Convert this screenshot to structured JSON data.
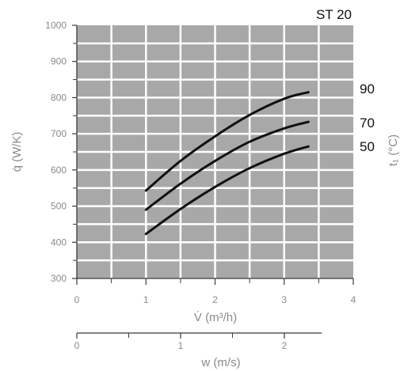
{
  "chart_data": {
    "type": "line",
    "title": "ST 20",
    "xlabel": "V̇ (m³/h)",
    "ylabel": "q̇ (W/K)",
    "right_label": "t₁ (°C)",
    "xlim": [
      0,
      4
    ],
    "ylim": [
      300,
      1000
    ],
    "x_ticks": [
      "0",
      "1",
      "2",
      "3",
      "4"
    ],
    "y_ticks": [
      "300",
      "400",
      "500",
      "600",
      "700",
      "800",
      "900",
      "1000"
    ],
    "grid": true,
    "secondary_axis": {
      "label": "w (m/s)",
      "ticks": [
        "0",
        "1",
        "2"
      ]
    },
    "series": [
      {
        "name": "90",
        "x": [
          1.0,
          1.5,
          2.0,
          2.5,
          3.0,
          3.35
        ],
        "y": [
          543,
          625,
          693,
          752,
          797,
          815
        ]
      },
      {
        "name": "70",
        "x": [
          1.0,
          1.5,
          2.0,
          2.5,
          3.0,
          3.35
        ],
        "y": [
          490,
          562,
          625,
          678,
          715,
          733
        ]
      },
      {
        "name": "50",
        "x": [
          1.0,
          1.5,
          2.0,
          2.5,
          3.0,
          3.35
        ],
        "y": [
          423,
          492,
          553,
          605,
          645,
          665
        ]
      }
    ]
  },
  "colors": {
    "plot_bg": "#a8a8a8",
    "grid": "#ffffff",
    "axis": "#3a3a3a",
    "curve": "#111111",
    "tick_text": "#8a8a8a",
    "dark_text": "#111111"
  }
}
